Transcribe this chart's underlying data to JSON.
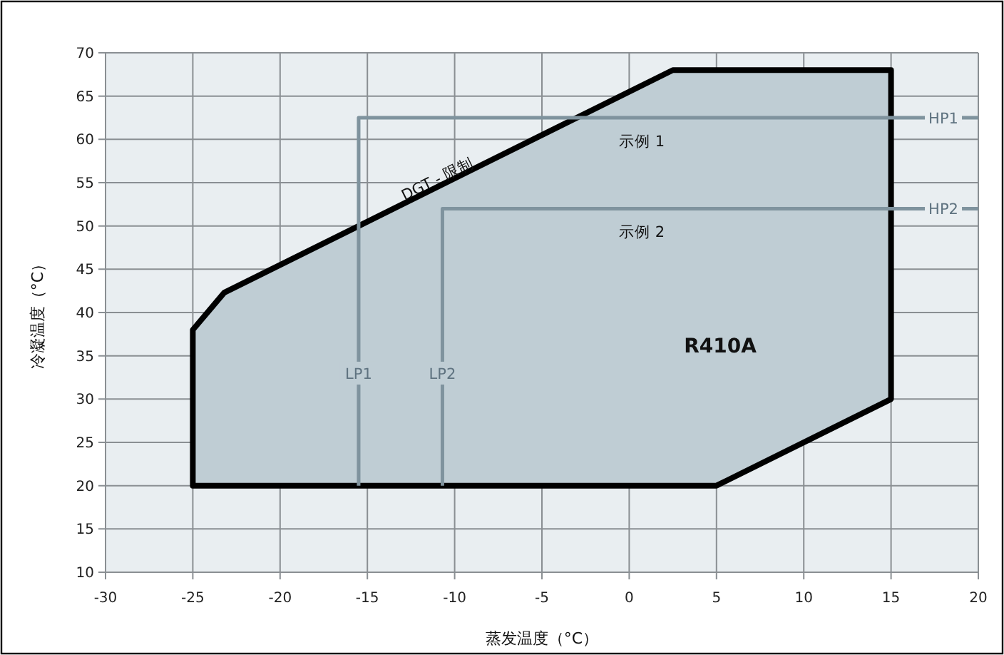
{
  "chart_data": {
    "type": "area",
    "xlabel": "蒸发温度（°C）",
    "ylabel": "冷凝温度（°C）",
    "xlim": [
      -30,
      20
    ],
    "ylim": [
      10,
      70
    ],
    "xticks": [
      -30,
      -25,
      -20,
      -15,
      -10,
      -5,
      0,
      5,
      10,
      15,
      20
    ],
    "yticks": [
      10,
      15,
      20,
      25,
      30,
      35,
      40,
      45,
      50,
      55,
      60,
      65,
      70
    ],
    "grid": true,
    "series": [
      {
        "color": "#bfcdd4",
        "x": [
          -25,
          -25,
          -23.2,
          2.5,
          15,
          15,
          5
        ],
        "values": [
          20,
          38,
          42.3,
          68,
          68,
          30,
          20
        ]
      },
      {
        "type": "line",
        "color": "#7f939e",
        "x": [
          -15.5,
          -15.5,
          20
        ],
        "values": [
          20,
          62.5,
          62.5
        ]
      },
      {
        "type": "line",
        "color": "#7f939e",
        "x": [
          -10.7,
          -10.7,
          20
        ],
        "values": [
          20,
          52,
          52
        ]
      }
    ],
    "annotations": [
      {
        "text": "DGT - 限制",
        "x": -11,
        "y": 55.5
      },
      "示例 1",
      "示例 2",
      "**R410A**",
      {
        "text": "LP1",
        "x": -15.5,
        "y": 33
      },
      {
        "text": "LP2",
        "x": -10.7,
        "y": 33
      },
      {
        "text": "HP1",
        "x": 18,
        "y": 62.5
      },
      {
        "text": "HP2",
        "x": 18,
        "y": 52
      }
    ]
  }
}
